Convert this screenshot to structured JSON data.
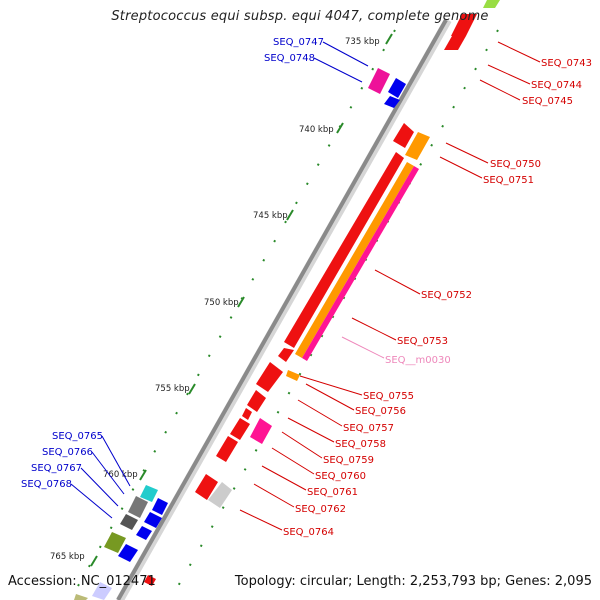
{
  "title": "Streptococcus equi subsp. equi 4047, complete genome",
  "footer": {
    "accession": "Accession: NC_012471",
    "summary": "Topology: circular; Length: 2,253,793 bp; Genes: 2,095"
  },
  "colors": {
    "backbone": "#8a8a8a",
    "forward_label": "#d40000",
    "reverse_label": "#0000cc",
    "rna_label": "#ee88bb",
    "tick": "#2a8a2a"
  },
  "kbp_ticks": [
    {
      "label": "735 kbp",
      "value": 735
    },
    {
      "label": "740 kbp",
      "value": 740
    },
    {
      "label": "745 kbp",
      "value": 745
    },
    {
      "label": "750 kbp",
      "value": 750
    },
    {
      "label": "755 kbp",
      "value": 755
    },
    {
      "label": "760 kbp",
      "value": 760
    },
    {
      "label": "765 kbp",
      "value": 765
    }
  ],
  "genes_right": [
    {
      "label": "SEQ_0743",
      "color": "#d40000"
    },
    {
      "label": "SEQ_0744",
      "color": "#d40000"
    },
    {
      "label": "SEQ_0745",
      "color": "#d40000"
    },
    {
      "label": "SEQ_0750",
      "color": "#d40000"
    },
    {
      "label": "SEQ_0751",
      "color": "#d40000"
    },
    {
      "label": "SEQ_0752",
      "color": "#d40000"
    },
    {
      "label": "SEQ_0753",
      "color": "#d40000"
    },
    {
      "label": "SEQ__m0030",
      "color": "#ee88bb"
    },
    {
      "label": "SEQ_0755",
      "color": "#d40000"
    },
    {
      "label": "SEQ_0756",
      "color": "#d40000"
    },
    {
      "label": "SEQ_0757",
      "color": "#d40000"
    },
    {
      "label": "SEQ_0758",
      "color": "#d40000"
    },
    {
      "label": "SEQ_0759",
      "color": "#d40000"
    },
    {
      "label": "SEQ_0760",
      "color": "#d40000"
    },
    {
      "label": "SEQ_0761",
      "color": "#d40000"
    },
    {
      "label": "SEQ_0762",
      "color": "#d40000"
    },
    {
      "label": "SEQ_0764",
      "color": "#d40000"
    }
  ],
  "genes_left": [
    {
      "label": "SEQ_0747",
      "color": "#0000cc"
    },
    {
      "label": "SEQ_0748",
      "color": "#0000cc"
    },
    {
      "label": "SEQ_0765",
      "color": "#0000cc"
    },
    {
      "label": "SEQ_0766",
      "color": "#0000cc"
    },
    {
      "label": "SEQ_0767",
      "color": "#0000cc"
    },
    {
      "label": "SEQ_0768",
      "color": "#0000cc"
    }
  ]
}
